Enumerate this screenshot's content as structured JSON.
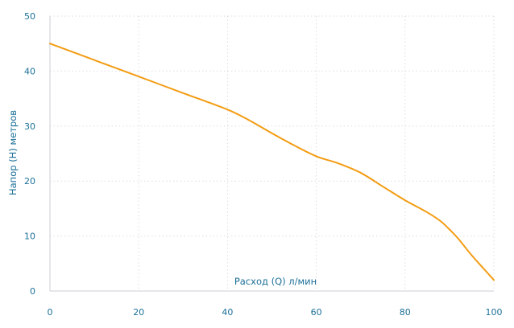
{
  "chart_data": {
    "type": "line",
    "title": "",
    "xlabel": "Расход (Q) л/мин",
    "ylabel": "Напор (H) метров",
    "xlim": [
      0,
      100
    ],
    "ylim": [
      0,
      50
    ],
    "x_ticks": [
      "0",
      "20",
      "40",
      "60",
      "80",
      "100"
    ],
    "y_ticks": [
      "0",
      "10",
      "20",
      "30",
      "40",
      "50"
    ],
    "grid": true,
    "legend": "none",
    "series": [
      {
        "color": "#f39c12",
        "x": [
          0,
          10,
          20,
          30,
          40,
          45,
          50,
          55,
          60,
          65,
          70,
          75,
          80,
          85,
          88,
          90,
          92,
          95,
          98,
          100
        ],
        "y": [
          45,
          42,
          39,
          36,
          33,
          31,
          28.7,
          26.5,
          24.5,
          23.2,
          21.5,
          19,
          16.5,
          14.3,
          12.7,
          11.2,
          9.5,
          6.5,
          3.8,
          2
        ]
      }
    ]
  },
  "colors": {
    "line": "#f39c12",
    "text": "#1b6f97",
    "grid": "#dedede"
  }
}
